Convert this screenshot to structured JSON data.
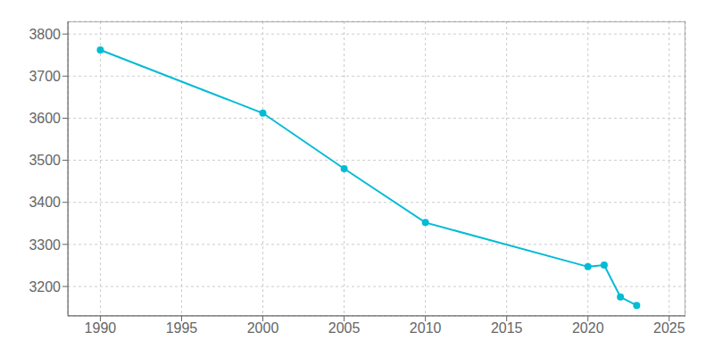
{
  "chart_data": {
    "type": "line",
    "x": [
      1990,
      2000,
      2005,
      2010,
      2020,
      2021,
      2022,
      2023
    ],
    "values": [
      3762,
      3612,
      3480,
      3352,
      3247,
      3251,
      3175,
      3155
    ],
    "color": "#00BCD4",
    "marker": "circle",
    "xlim": [
      1988,
      2026
    ],
    "ylim": [
      3130,
      3830
    ],
    "xticks": [
      1990,
      1995,
      2000,
      2005,
      2010,
      2015,
      2020,
      2025
    ],
    "yticks": [
      3200,
      3300,
      3400,
      3500,
      3600,
      3700,
      3800
    ],
    "grid": true
  }
}
